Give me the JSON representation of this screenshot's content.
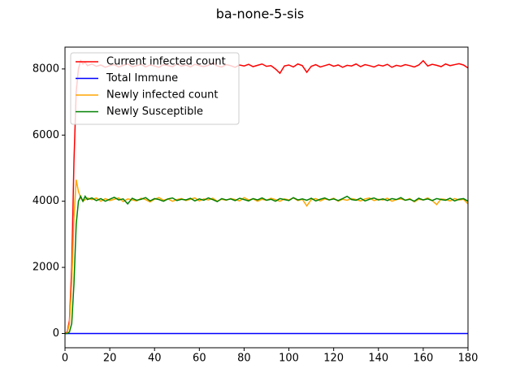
{
  "chart_data": {
    "type": "line",
    "title": "ba-none-5-sis",
    "x": [
      0,
      1,
      2,
      3,
      4,
      5,
      6,
      7,
      8,
      9,
      10,
      12,
      14,
      16,
      18,
      20,
      22,
      24,
      26,
      28,
      30,
      32,
      34,
      36,
      38,
      40,
      42,
      44,
      46,
      48,
      50,
      52,
      54,
      56,
      58,
      60,
      62,
      64,
      66,
      68,
      70,
      72,
      74,
      76,
      78,
      80,
      82,
      84,
      86,
      88,
      90,
      92,
      94,
      96,
      98,
      100,
      102,
      104,
      106,
      108,
      110,
      112,
      114,
      116,
      118,
      120,
      122,
      124,
      126,
      128,
      130,
      132,
      134,
      136,
      138,
      140,
      142,
      144,
      146,
      148,
      150,
      152,
      154,
      156,
      158,
      160,
      162,
      164,
      166,
      168,
      170,
      172,
      174,
      176,
      178,
      180
    ],
    "series": [
      {
        "name": "Current infected count",
        "color": "#ff0000",
        "values": [
          0,
          50,
          400,
          2000,
          5200,
          7300,
          8000,
          8250,
          8150,
          8200,
          8100,
          8150,
          8080,
          8120,
          8050,
          8100,
          8130,
          8060,
          8110,
          8150,
          8070,
          8100,
          8140,
          8060,
          8120,
          8090,
          8050,
          8130,
          8100,
          8070,
          8150,
          8080,
          8120,
          8060,
          8140,
          8100,
          8070,
          8110,
          8180,
          8090,
          8060,
          8130,
          8100,
          8050,
          8120,
          8090,
          8140,
          8070,
          8110,
          8150,
          8080,
          8100,
          8000,
          7870,
          8090,
          8120,
          8060,
          8150,
          8100,
          7900,
          8080,
          8130,
          8060,
          8100,
          8140,
          8080,
          8120,
          8050,
          8110,
          8090,
          8150,
          8070,
          8130,
          8100,
          8060,
          8120,
          8090,
          8140,
          8050,
          8110,
          8080,
          8130,
          8100,
          8060,
          8120,
          8250,
          8090,
          8140,
          8110,
          8070,
          8150,
          8100,
          8130,
          8160,
          8120,
          8030
        ]
      },
      {
        "name": "Total Immune",
        "color": "#0000ff",
        "values": [
          0,
          0,
          0,
          0,
          0,
          0,
          0,
          0,
          0,
          0,
          0,
          0,
          0,
          0,
          0,
          0,
          0,
          0,
          0,
          0,
          0,
          0,
          0,
          0,
          0,
          0,
          0,
          0,
          0,
          0,
          0,
          0,
          0,
          0,
          0,
          0,
          0,
          0,
          0,
          0,
          0,
          0,
          0,
          0,
          0,
          0,
          0,
          0,
          0,
          0,
          0,
          0,
          0,
          0,
          0,
          0,
          0,
          0,
          0,
          0,
          0,
          0,
          0,
          0,
          0,
          0,
          0,
          0,
          0,
          0,
          0,
          0,
          0,
          0,
          0,
          0,
          0,
          0,
          0,
          0,
          0,
          0,
          0,
          0,
          0,
          0,
          0,
          0,
          0,
          0,
          0,
          0,
          0,
          0,
          0,
          0
        ]
      },
      {
        "name": "Newly infected count",
        "color": "#ffa500",
        "values": [
          0,
          20,
          300,
          1500,
          3500,
          4650,
          4300,
          4100,
          4000,
          4050,
          4100,
          4050,
          4100,
          4000,
          4080,
          4020,
          4060,
          4100,
          3990,
          4070,
          4040,
          4010,
          4090,
          4050,
          3980,
          4060,
          4110,
          4030,
          4070,
          4000,
          4050,
          4080,
          4020,
          4060,
          4100,
          4010,
          4070,
          4040,
          4090,
          4000,
          4060,
          4030,
          4080,
          4050,
          4010,
          4110,
          4040,
          4070,
          4000,
          4060,
          4030,
          4090,
          4050,
          4000,
          4070,
          4040,
          4100,
          4020,
          4060,
          3860,
          4050,
          4080,
          4010,
          4070,
          4040,
          4090,
          4000,
          4060,
          4030,
          4080,
          4050,
          4010,
          4070,
          4100,
          4020,
          4060,
          4040,
          4090,
          4000,
          4050,
          4070,
          4030,
          4080,
          3980,
          4060,
          4040,
          4100,
          4020,
          3900,
          4070,
          4050,
          4010,
          4080,
          4040,
          4060,
          3920
        ]
      },
      {
        "name": "Newly Susceptible",
        "color": "#008000",
        "values": [
          0,
          0,
          50,
          300,
          1500,
          3300,
          4000,
          4150,
          4000,
          4150,
          4050,
          4100,
          4020,
          4080,
          4000,
          4060,
          4120,
          4040,
          4070,
          3920,
          4090,
          4030,
          4060,
          4110,
          4010,
          4080,
          4050,
          4000,
          4070,
          4100,
          4020,
          4060,
          4040,
          4090,
          4010,
          4070,
          4030,
          4100,
          4050,
          3990,
          4080,
          4040,
          4070,
          4020,
          4090,
          4050,
          4010,
          4080,
          4040,
          4100,
          4030,
          4060,
          4000,
          4080,
          4050,
          4020,
          4110,
          4040,
          4070,
          4030,
          4090,
          4010,
          4060,
          4100,
          4040,
          4070,
          4020,
          4080,
          4150,
          4050,
          4030,
          4090,
          4010,
          4060,
          4100,
          4040,
          4070,
          4020,
          4080,
          4050,
          4110,
          4030,
          4060,
          4000,
          4090,
          4040,
          4070,
          4020,
          4080,
          4050,
          4030,
          4090,
          4010,
          4060,
          4080,
          4000
        ]
      }
    ],
    "xlim": [
      0,
      180
    ],
    "xticks": [
      0,
      20,
      40,
      60,
      80,
      100,
      120,
      140,
      160,
      180
    ],
    "ylim": [
      -430,
      8660
    ],
    "yticks": [
      0,
      2000,
      4000,
      6000,
      8000
    ],
    "legend": "upper left"
  }
}
